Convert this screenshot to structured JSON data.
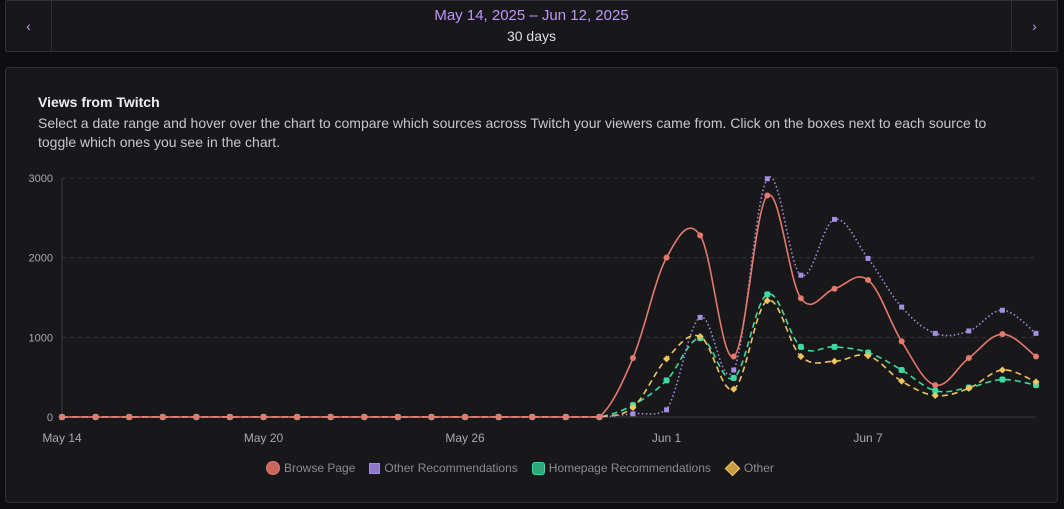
{
  "date_nav": {
    "prev_icon": "chevron-left-icon",
    "next_icon": "chevron-right-icon",
    "prev_glyph": "‹",
    "next_glyph": "›",
    "range": "May 14, 2025 – Jun 12, 2025",
    "days": "30 days"
  },
  "panel": {
    "title": "Views from Twitch",
    "description": "Select a date range and hover over the chart to compare which sources across Twitch your viewers came from. Click on the boxes next to each source to toggle which ones you see in the chart."
  },
  "chart_data": {
    "type": "line",
    "x": [
      "May 14",
      "May 15",
      "May 16",
      "May 17",
      "May 18",
      "May 19",
      "May 20",
      "May 21",
      "May 22",
      "May 23",
      "May 24",
      "May 25",
      "May 26",
      "May 27",
      "May 28",
      "May 29",
      "May 30",
      "May 31",
      "Jun 1",
      "Jun 2",
      "Jun 3",
      "Jun 4",
      "Jun 5",
      "Jun 6",
      "Jun 7",
      "Jun 8",
      "Jun 9",
      "Jun 10",
      "Jun 11",
      "Jun 12"
    ],
    "x_tick_labels": [
      "May 14",
      "May 20",
      "May 26",
      "Jun 1",
      "Jun 7"
    ],
    "y_ticks": [
      0,
      1000,
      2000,
      3000
    ],
    "ylim": [
      0,
      3000
    ],
    "grid": true,
    "legend_position": "bottom",
    "series": [
      {
        "name": "Browse Page",
        "color": "#e5796e",
        "marker": "circle",
        "dash": "solid",
        "values": [
          0,
          0,
          0,
          0,
          0,
          0,
          0,
          0,
          0,
          0,
          0,
          0,
          0,
          0,
          0,
          0,
          0,
          740,
          2000,
          2280,
          760,
          2780,
          1490,
          1610,
          1720,
          950,
          400,
          740,
          1040,
          760
        ]
      },
      {
        "name": "Other Recommendations",
        "color": "#a58de0",
        "marker": "square",
        "dash": "dotted",
        "values": [
          0,
          0,
          0,
          0,
          0,
          0,
          0,
          0,
          0,
          0,
          0,
          0,
          0,
          0,
          0,
          0,
          0,
          40,
          90,
          1250,
          590,
          2990,
          1780,
          2480,
          1990,
          1380,
          1050,
          1080,
          1340,
          1050
        ]
      },
      {
        "name": "Homepage Recommendations",
        "color": "#3dd9a0",
        "marker": "roundsquare",
        "dash": "dashed",
        "values": [
          0,
          0,
          0,
          0,
          0,
          0,
          0,
          0,
          0,
          0,
          0,
          0,
          0,
          0,
          0,
          0,
          0,
          150,
          460,
          990,
          490,
          1540,
          880,
          880,
          810,
          590,
          330,
          370,
          470,
          400
        ]
      },
      {
        "name": "Other",
        "color": "#f0c560",
        "marker": "diamond",
        "dash": "dashed",
        "values": [
          0,
          0,
          0,
          0,
          0,
          0,
          0,
          0,
          0,
          0,
          0,
          0,
          0,
          0,
          0,
          0,
          0,
          120,
          730,
          1010,
          350,
          1460,
          760,
          700,
          770,
          450,
          270,
          360,
          590,
          440
        ]
      }
    ]
  }
}
